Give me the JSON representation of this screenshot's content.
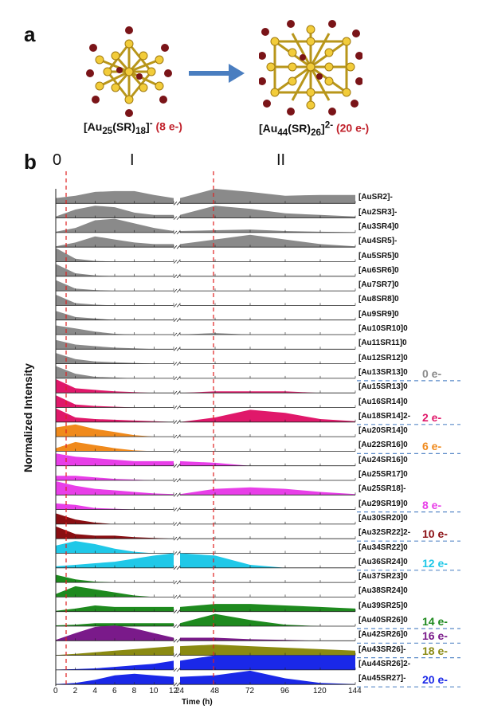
{
  "panel_a": {
    "letter": "a",
    "left_caption_main": "[Au",
    "left_caption_full": "[Au25(SR)18]-",
    "left_electrons": "(8 e-)",
    "right_caption_full": "[Au44(SR)26]2-",
    "right_electrons": "(20 e-)"
  },
  "panel_b": {
    "letter": "b",
    "regions": [
      "0",
      "I",
      "II"
    ],
    "ylabel": "Normalized Intensity",
    "xlabel": "Time (h)",
    "xticks": [
      "0",
      "2",
      "4",
      "6",
      "8",
      "10",
      "12",
      "24",
      "48",
      "72",
      "96",
      "120",
      "144"
    ],
    "electron_groups": [
      {
        "label": "0 e-",
        "color": "#8a8a8a"
      },
      {
        "label": "2 e-",
        "color": "#e0186a"
      },
      {
        "label": "6 e-",
        "color": "#f08a1c"
      },
      {
        "label": "8 e-",
        "color": "#e83ee8"
      },
      {
        "label": "10 e-",
        "color": "#8a0e12"
      },
      {
        "label": "12 e-",
        "color": "#20c8e8"
      },
      {
        "label": "14 e-",
        "color": "#1e8a1e"
      },
      {
        "label": "16 e-",
        "color": "#7a1a8a"
      },
      {
        "label": "18 e-",
        "color": "#8a8a12"
      },
      {
        "label": "20 e-",
        "color": "#1a28e8"
      }
    ],
    "rows": [
      {
        "label": "[AuSR2]-",
        "group": 0
      },
      {
        "label": "[Au2SR3]-",
        "group": 0
      },
      {
        "label": "[Au3SR4]0",
        "group": 0
      },
      {
        "label": "[Au4SR5]-",
        "group": 0
      },
      {
        "label": "[Au5SR5]0",
        "group": 0
      },
      {
        "label": "[Au6SR6]0",
        "group": 0
      },
      {
        "label": "[Au7SR7]0",
        "group": 0
      },
      {
        "label": "[Au8SR8]0",
        "group": 0
      },
      {
        "label": "[Au9SR9]0",
        "group": 0
      },
      {
        "label": "[Au10SR10]0",
        "group": 0
      },
      {
        "label": "[Au11SR11]0",
        "group": 0
      },
      {
        "label": "[Au12SR12]0",
        "group": 0
      },
      {
        "label": "[Au13SR13]0",
        "group": 0
      },
      {
        "label": "[Au15SR13]0",
        "group": 1
      },
      {
        "label": "[Au16SR14]0",
        "group": 1
      },
      {
        "label": "[Au18SR14]2-",
        "group": 1
      },
      {
        "label": "[Au20SR14]0",
        "group": 2
      },
      {
        "label": "[Au22SR16]0",
        "group": 2
      },
      {
        "label": "[Au24SR16]0",
        "group": 3
      },
      {
        "label": "[Au25SR17]0",
        "group": 3
      },
      {
        "label": "[Au25SR18]-",
        "group": 3
      },
      {
        "label": "[Au29SR19]0",
        "group": 3
      },
      {
        "label": "[Au30SR20]0",
        "group": 4
      },
      {
        "label": "[Au32SR22]2-",
        "group": 4
      },
      {
        "label": "[Au34SR22]0",
        "group": 5
      },
      {
        "label": "[Au36SR24]0",
        "group": 5
      },
      {
        "label": "[Au37SR23]0",
        "group": 6
      },
      {
        "label": "[Au38SR24]0",
        "group": 6
      },
      {
        "label": "[Au39SR25]0",
        "group": 6
      },
      {
        "label": "[Au40SR26]0",
        "group": 6
      },
      {
        "label": "[Au42SR26]0",
        "group": 7
      },
      {
        "label": "[Au43SR26]-",
        "group": 8
      },
      {
        "label": "[Au44SR26]2-",
        "group": 9
      },
      {
        "label": "[Au45SR27]-",
        "group": 9
      }
    ]
  }
}
